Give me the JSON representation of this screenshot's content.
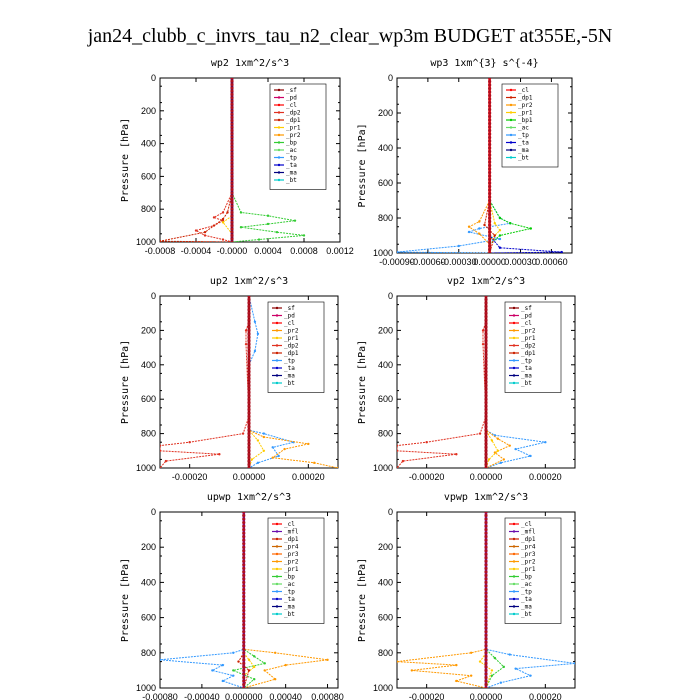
{
  "figure_title": "jan24_clubb_c_invrs_tau_n2_clear_wp3m  BUDGET at355E,-5N",
  "colors": {
    "_sf": "#8b0000",
    "_pd": "#cc0066",
    "_cl": "#ff0000",
    "_mfl": "#6a0dad",
    "_dp2": "#e03020",
    "_dp1": "#cc2200",
    "_pr1": "#ffcc00",
    "_pr2": "#ff9900",
    "_pr3": "#ff6600",
    "_pr4": "#cc6600",
    "_bp1": "#00cc00",
    "_bp": "#33cc33",
    "_ac": "#66dd66",
    "_tp": "#3399ff",
    "_ta": "#0000cc",
    "_ma": "#000080",
    "_bt": "#00cccc"
  },
  "chart_data": [
    {
      "type": "line",
      "title": "wp2   1xm^2/s^3",
      "ylabel": "Pressure [hPa]",
      "xlim": [
        -0.0008,
        0.0012
      ],
      "ylim": [
        1000,
        0
      ],
      "xticks": [
        -0.0008,
        -0.0004,
        0.0,
        0.0004,
        0.0008,
        0.0012
      ],
      "xtick_labels": [
        "-0.0008",
        "-0.0004",
        "-0.0000",
        "0.0004",
        "0.0008",
        "0.0012"
      ],
      "yticks": [
        0,
        200,
        400,
        600,
        800,
        1000
      ],
      "legend": [
        "_sf",
        "_pd",
        "_cl",
        "_dp2",
        "_dp1",
        "_pr1",
        "_pr2",
        "_bp",
        "_ac",
        "_tp",
        "_ta",
        "_ma",
        "_bt"
      ],
      "series": [
        {
          "name": "_bp",
          "x": [
            0.0,
            0.0,
            0.0001,
            0.0004,
            0.0007,
            0.0004,
            0.0001,
            0.0005,
            0.0008,
            0.0003,
            0.0
          ],
          "y": [
            0,
            700,
            820,
            840,
            870,
            890,
            910,
            940,
            960,
            985,
            1000
          ]
        },
        {
          "name": "_dp2",
          "x": [
            0.0,
            0.0,
            -0.0001,
            -0.0002,
            -0.0001,
            -0.0002,
            -0.0004,
            -0.0003,
            -0.0001,
            0.0
          ],
          "y": [
            0,
            700,
            820,
            850,
            870,
            900,
            930,
            960,
            985,
            1000
          ]
        },
        {
          "name": "_pr1",
          "x": [
            0.0,
            0.0,
            0.0,
            -0.0001,
            0.0,
            0.0
          ],
          "y": [
            0,
            700,
            840,
            880,
            950,
            1000
          ]
        },
        {
          "name": "_dp1",
          "x": [
            0.0,
            0.0,
            -5e-05,
            -0.0001,
            -0.0003,
            -0.0008,
            0.0
          ],
          "y": [
            0,
            700,
            820,
            860,
            940,
            995,
            1000
          ]
        },
        {
          "name": "_pd",
          "x": [
            0.0,
            0.0,
            0.0
          ],
          "y": [
            0,
            500,
            1000
          ]
        },
        {
          "name": "_ma",
          "x": [
            0.0,
            0.0
          ],
          "y": [
            0,
            1000
          ]
        }
      ]
    },
    {
      "type": "line",
      "title": "wp3   1xm^{3} s^{-4}",
      "ylabel": "Pressure [hPa]",
      "xlim": [
        -0.0009,
        0.0008
      ],
      "ylim": [
        1000,
        0
      ],
      "xticks": [
        -0.0009,
        -0.0006,
        -0.0003,
        0.0,
        0.0003,
        0.0006
      ],
      "xtick_labels": [
        "-0.00090",
        "-0.00060",
        "-0.00030",
        "0.00000",
        "0.00030",
        "0.00060"
      ],
      "yticks": [
        0,
        200,
        400,
        600,
        800,
        1000
      ],
      "legend": [
        "_cl",
        "_dp1",
        "_pr2",
        "_pr1",
        "_bp1",
        "_ac",
        "_tp",
        "_ta",
        "_ma",
        "_bt"
      ],
      "series": [
        {
          "name": "_tp",
          "x": [
            0.0,
            0.0,
            0.0001,
            0.0002,
            -0.0001,
            -0.0002,
            0.0001,
            -0.0003,
            -0.0009,
            0.0
          ],
          "y": [
            0,
            700,
            800,
            830,
            860,
            880,
            920,
            960,
            995,
            1000
          ]
        },
        {
          "name": "_bp1",
          "x": [
            0.0,
            0.0,
            0.0001,
            0.0002,
            0.0004,
            0.0001,
            0.0,
            0.0
          ],
          "y": [
            0,
            700,
            800,
            830,
            860,
            900,
            950,
            1000
          ]
        },
        {
          "name": "_pr2",
          "x": [
            0.0,
            0.0,
            -0.0001,
            -0.0002,
            -0.0001,
            0.0,
            0.0
          ],
          "y": [
            0,
            700,
            820,
            850,
            890,
            950,
            1000
          ]
        },
        {
          "name": "_pr1",
          "x": [
            0.0,
            0.0,
            5e-05,
            0.0001,
            0.0,
            0.0
          ],
          "y": [
            0,
            700,
            830,
            870,
            930,
            1000
          ]
        },
        {
          "name": "_ta",
          "x": [
            0.0,
            0.0,
            0.0001,
            0.0007,
            0.0
          ],
          "y": [
            0,
            900,
            970,
            995,
            1000
          ]
        },
        {
          "name": "_dp1",
          "x": [
            0.0,
            0.0,
            -5e-05,
            5e-05,
            0.0
          ],
          "y": [
            0,
            700,
            840,
            900,
            1000
          ]
        },
        {
          "name": "_cl",
          "x": [
            0.0,
            0.0
          ],
          "y": [
            0,
            1000
          ]
        }
      ]
    },
    {
      "type": "line",
      "title": "up2   1xm^2/s^3",
      "ylabel": "Pressure [hPa]",
      "xlim": [
        -0.0003,
        0.0003
      ],
      "ylim": [
        1000,
        0
      ],
      "xticks": [
        -0.0002,
        0.0,
        0.0002
      ],
      "xtick_labels": [
        "-0.00020",
        "0.00000",
        "0.00020"
      ],
      "yticks": [
        0,
        200,
        400,
        600,
        800,
        1000
      ],
      "legend": [
        "_sf",
        "_pd",
        "_cl",
        "_pr2",
        "_pr1",
        "_dp2",
        "_dp1",
        "_tp",
        "_ta",
        "_ma",
        "_bt"
      ],
      "series": [
        {
          "name": "_dp2",
          "x": [
            0.0,
            0.0,
            -1e-05,
            -1e-05,
            0.0,
            -2e-05,
            -0.0002,
            -0.0003,
            -0.0003,
            -0.0001,
            -0.00028,
            -0.0003
          ],
          "y": [
            0,
            150,
            200,
            280,
            700,
            800,
            850,
            870,
            900,
            920,
            960,
            1000
          ]
        },
        {
          "name": "_tp",
          "x": [
            0.0,
            2e-05,
            3e-05,
            2e-05,
            0.0,
            0.0,
            5e-05,
            0.00015,
            8e-05,
            0.0001,
            3e-05,
            0.0
          ],
          "y": [
            0,
            150,
            220,
            320,
            400,
            780,
            800,
            850,
            880,
            930,
            970,
            1000
          ]
        },
        {
          "name": "_pr2",
          "x": [
            0.0,
            0.0,
            5e-05,
            0.0002,
            0.00012,
            8e-05,
            0.00022,
            0.0003
          ],
          "y": [
            0,
            780,
            820,
            860,
            890,
            940,
            970,
            1000
          ]
        },
        {
          "name": "_pr1",
          "x": [
            0.0,
            0.0,
            3e-05,
            5e-05,
            1e-05,
            0.0
          ],
          "y": [
            0,
            780,
            840,
            900,
            950,
            1000
          ]
        },
        {
          "name": "_sf",
          "x": [
            0.0,
            0.0
          ],
          "y": [
            0,
            1000
          ]
        }
      ]
    },
    {
      "type": "line",
      "title": "vp2   1xm^2/s^3",
      "ylabel": "Pressure [hPa]",
      "xlim": [
        -0.0003,
        0.0003
      ],
      "ylim": [
        1000,
        0
      ],
      "xticks": [
        -0.0002,
        0.0,
        0.0002
      ],
      "xtick_labels": [
        "-0.00020",
        "0.00000",
        "0.00020"
      ],
      "yticks": [
        0,
        200,
        400,
        600,
        800,
        1000
      ],
      "legend": [
        "_sf",
        "_pd",
        "_cl",
        "_pr2",
        "_pr1",
        "_dp2",
        "_dp1",
        "_tp",
        "_ta",
        "_ma",
        "_bt"
      ],
      "series": [
        {
          "name": "_dp2",
          "x": [
            0.0,
            0.0,
            -1e-05,
            -1e-05,
            0.0,
            -2e-05,
            -0.0002,
            -0.0003,
            -0.0003,
            -0.0001,
            -0.00028,
            -0.0003
          ],
          "y": [
            0,
            150,
            200,
            280,
            700,
            800,
            850,
            870,
            900,
            920,
            960,
            1000
          ]
        },
        {
          "name": "_tp",
          "x": [
            0.0,
            0.0,
            3e-05,
            0.0002,
            0.0001,
            0.00015,
            5e-05,
            0.0
          ],
          "y": [
            0,
            780,
            810,
            850,
            890,
            930,
            970,
            1000
          ]
        },
        {
          "name": "_pr2",
          "x": [
            0.0,
            0.0,
            4e-05,
            8e-05,
            3e-05,
            6e-05,
            0.0
          ],
          "y": [
            0,
            780,
            830,
            870,
            910,
            950,
            1000
          ]
        },
        {
          "name": "_pr1",
          "x": [
            0.0,
            0.0,
            2e-05,
            4e-05,
            1e-05,
            0.0
          ],
          "y": [
            0,
            780,
            840,
            900,
            950,
            1000
          ]
        },
        {
          "name": "_sf",
          "x": [
            0.0,
            0.0
          ],
          "y": [
            0,
            1000
          ]
        }
      ]
    },
    {
      "type": "line",
      "title": "upwp   1xm^2/s^3",
      "ylabel": "Pressure [hPa]",
      "xlim": [
        -0.0008,
        0.0009
      ],
      "ylim": [
        1000,
        0
      ],
      "xticks": [
        -0.0008,
        -0.0004,
        0.0,
        0.0004,
        0.0008
      ],
      "xtick_labels": [
        "-0.00080",
        "-0.00040",
        "0.000000",
        "0.00040",
        "0.00080"
      ],
      "yticks": [
        0,
        200,
        400,
        600,
        800,
        1000
      ],
      "legend": [
        "_cl",
        "_mfl",
        "_dp1",
        "_pr4",
        "_pr3",
        "_pr2",
        "_pr1",
        "_bp",
        "_ac",
        "_tp",
        "_ta",
        "_ma",
        "_bt"
      ],
      "series": [
        {
          "name": "_tp",
          "x": [
            0.0,
            0.0,
            -0.0001,
            -0.0008,
            -0.0002,
            -0.0003,
            -0.0001,
            -0.0002,
            0.0
          ],
          "y": [
            0,
            780,
            800,
            840,
            870,
            900,
            930,
            960,
            1000
          ]
        },
        {
          "name": "_pr2",
          "x": [
            0.0,
            0.0,
            0.0003,
            0.0008,
            0.0004,
            0.0002,
            0.0003,
            0.0
          ],
          "y": [
            0,
            780,
            800,
            840,
            870,
            900,
            950,
            1000
          ]
        },
        {
          "name": "_bp",
          "x": [
            0.0,
            0.0,
            0.0001,
            0.0002,
            -0.0001,
            0.0001,
            0.0
          ],
          "y": [
            0,
            780,
            820,
            860,
            900,
            950,
            1000
          ]
        },
        {
          "name": "_pr1",
          "x": [
            0.0,
            0.0,
            5e-05,
            0.0001,
            0.0,
            0.0
          ],
          "y": [
            0,
            800,
            840,
            880,
            930,
            1000
          ]
        },
        {
          "name": "_dp1",
          "x": [
            0.0,
            0.0,
            -5e-05,
            5e-05,
            0.0
          ],
          "y": [
            0,
            800,
            850,
            900,
            1000
          ]
        },
        {
          "name": "_mfl",
          "x": [
            0.0,
            0.0
          ],
          "y": [
            0,
            1000
          ]
        }
      ]
    },
    {
      "type": "line",
      "title": "vpwp   1xm^2/s^3",
      "ylabel": "Pressure [hPa]",
      "xlim": [
        -0.0003,
        0.0003
      ],
      "ylim": [
        1000,
        0
      ],
      "xticks": [
        -0.0002,
        0.0,
        0.0002
      ],
      "xtick_labels": [
        "-0.00020",
        "0.00000",
        "0.00020"
      ],
      "yticks": [
        0,
        200,
        400,
        600,
        800,
        1000
      ],
      "legend": [
        "_cl",
        "_mfl",
        "_dp1",
        "_pr4",
        "_pr3",
        "_pr2",
        "_pr1",
        "_bp",
        "_ac",
        "_tp",
        "_ta",
        "_ma",
        "_bt"
      ],
      "series": [
        {
          "name": "_pr2",
          "x": [
            0.0,
            0.0,
            -5e-05,
            -0.0003,
            -0.0001,
            -0.00025,
            -5e-05,
            -0.0001,
            0.0
          ],
          "y": [
            0,
            780,
            800,
            850,
            870,
            900,
            930,
            960,
            1000
          ]
        },
        {
          "name": "_tp",
          "x": [
            0.0,
            0.0,
            8e-05,
            0.0003,
            0.0001,
            0.00015,
            5e-05,
            0.0
          ],
          "y": [
            0,
            780,
            810,
            860,
            890,
            930,
            970,
            1000
          ]
        },
        {
          "name": "_bp",
          "x": [
            0.0,
            0.0,
            3e-05,
            6e-05,
            2e-05,
            0.0
          ],
          "y": [
            0,
            780,
            830,
            880,
            930,
            1000
          ]
        },
        {
          "name": "_pr1",
          "x": [
            0.0,
            0.0,
            -2e-05,
            2e-05,
            0.0
          ],
          "y": [
            0,
            800,
            850,
            900,
            1000
          ]
        },
        {
          "name": "_mfl",
          "x": [
            0.0,
            0.0
          ],
          "y": [
            0,
            1000
          ]
        }
      ]
    }
  ]
}
